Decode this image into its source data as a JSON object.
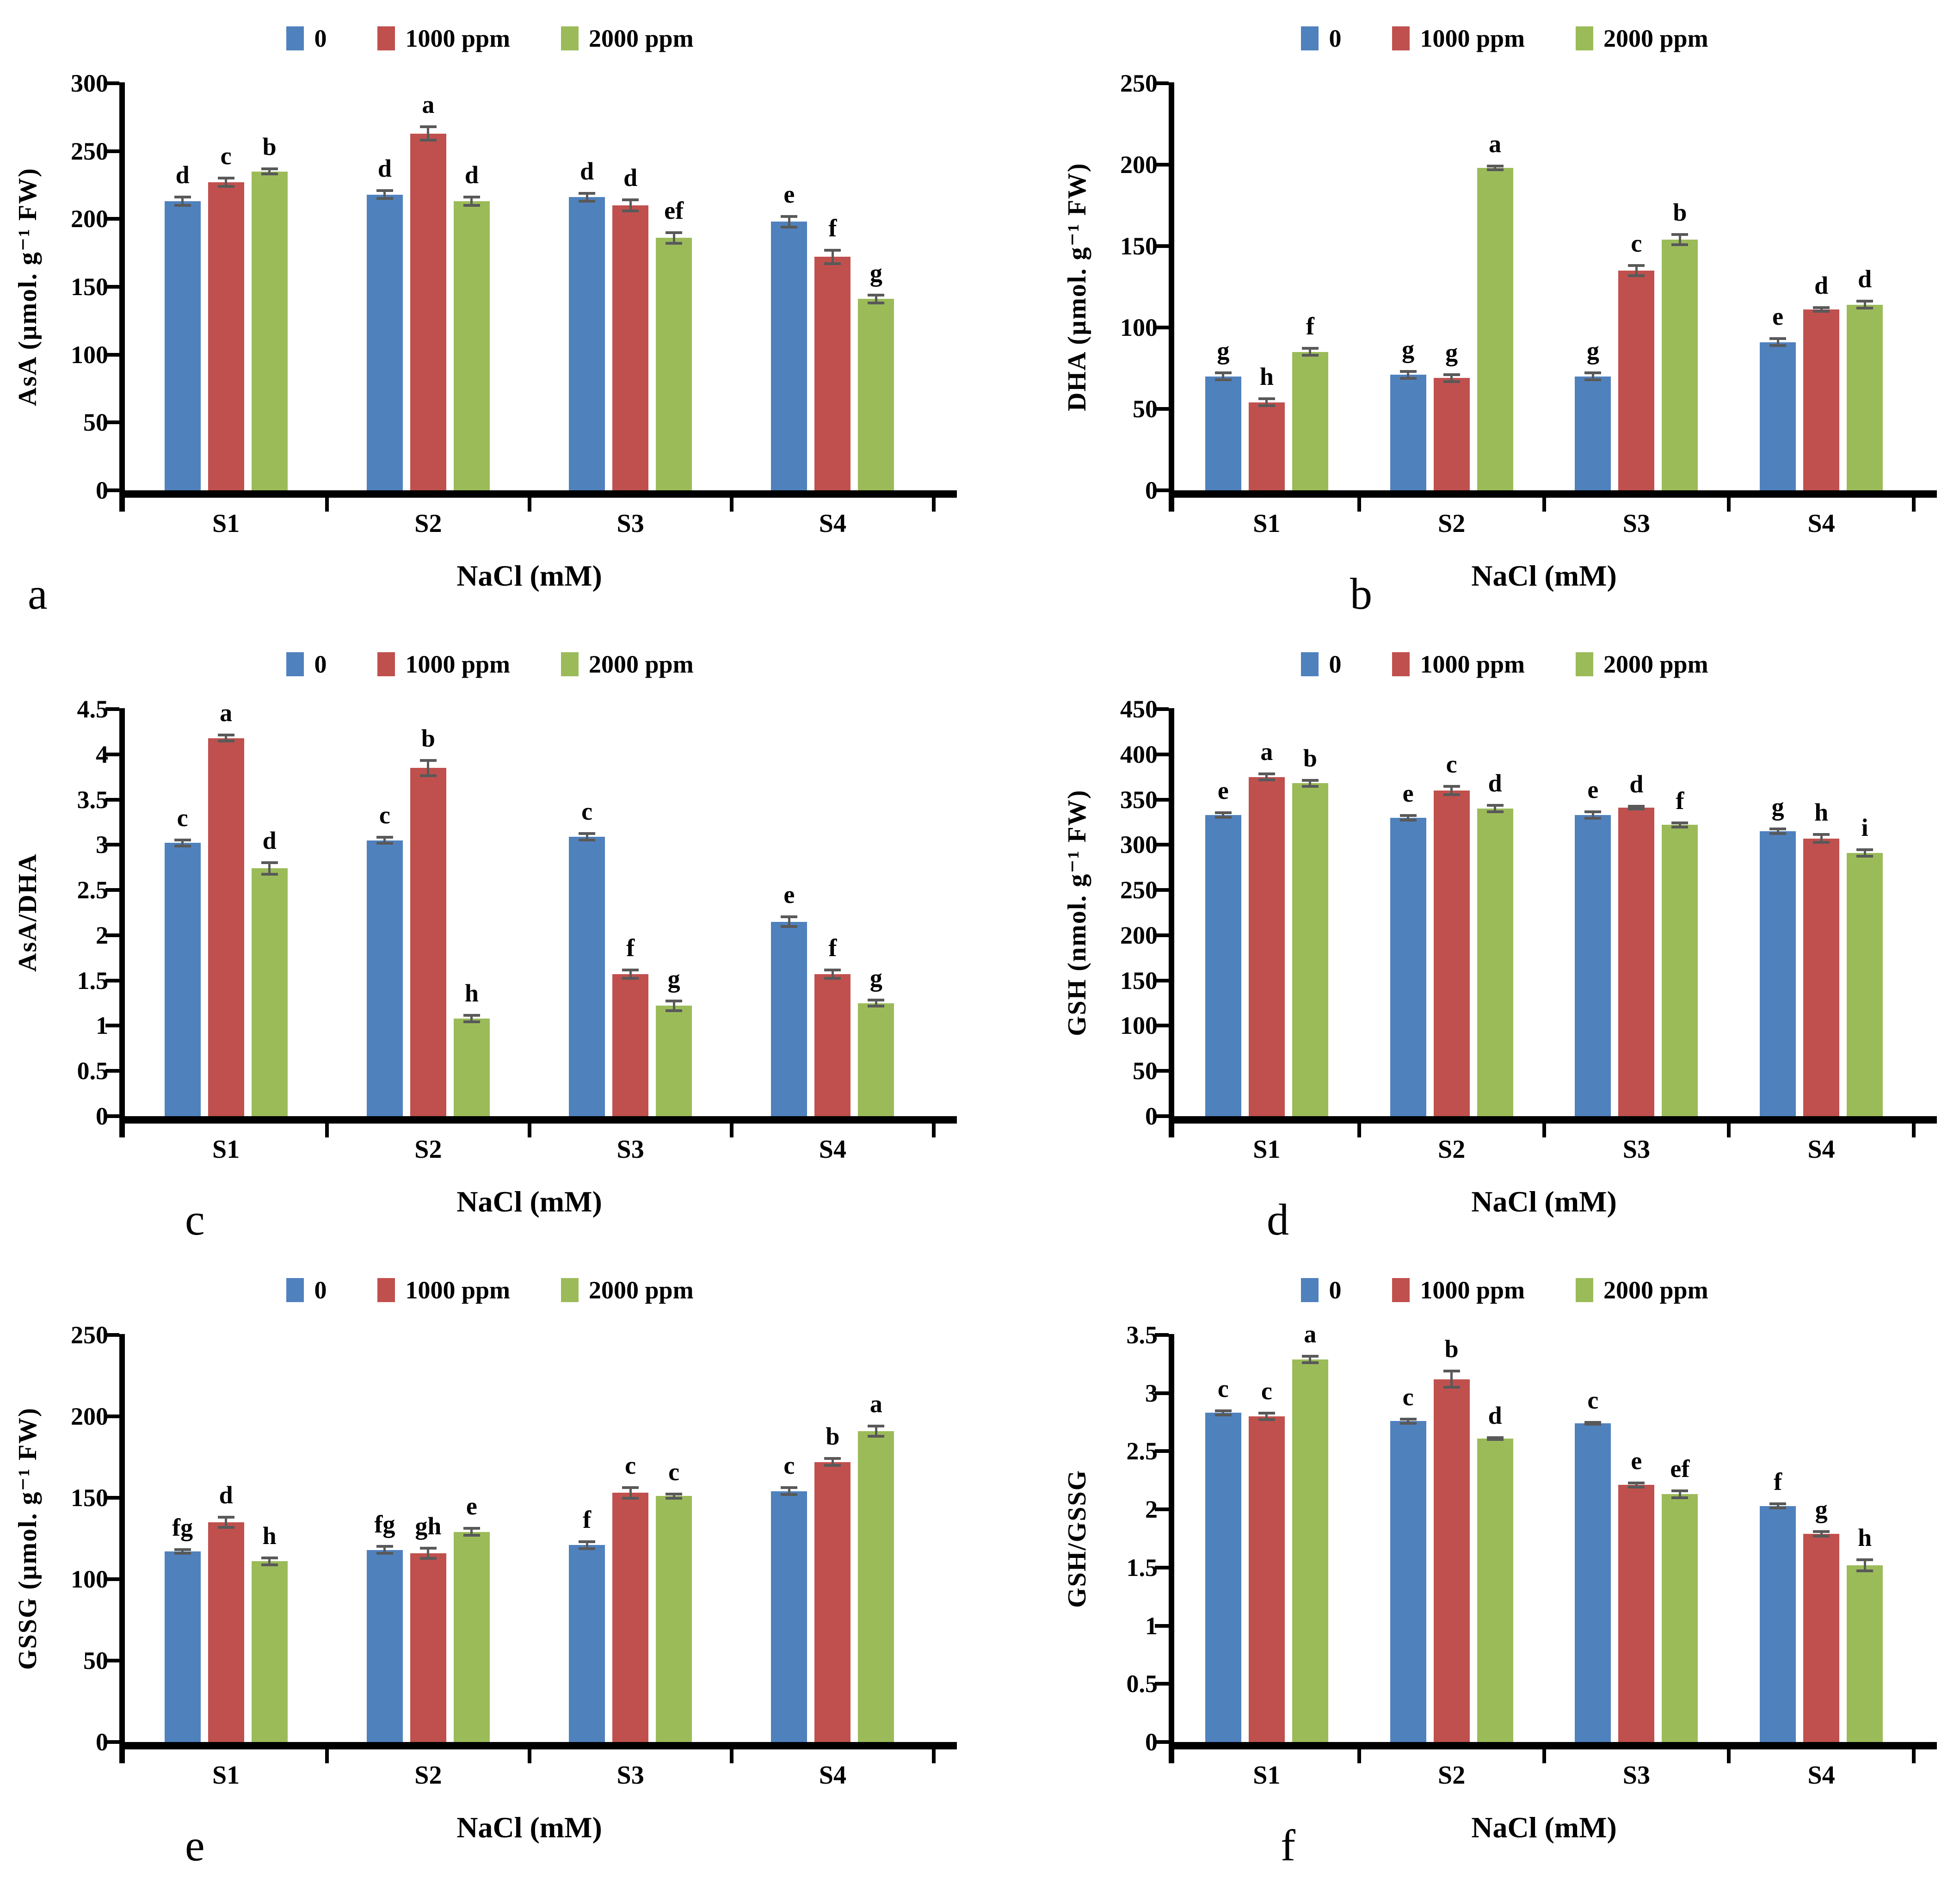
{
  "legend": {
    "items": [
      {
        "label": "0",
        "color": "#4F81BD"
      },
      {
        "label": "1000 ppm",
        "color": "#C0504D"
      },
      {
        "label": "2000 ppm",
        "color": "#9BBB59"
      }
    ]
  },
  "error_bar_color": "#595959",
  "chart_data": [
    {
      "panel": "a",
      "type": "bar",
      "ylabel": "AsA (µmol. g⁻¹ FW)",
      "xlabel": "NaCl (mM)",
      "ylim": [
        0,
        300
      ],
      "ytick_step": 50,
      "grid": false,
      "legend_position": "top",
      "categories": [
        "S1",
        "S2",
        "S3",
        "S4"
      ],
      "series": [
        {
          "name": "0",
          "color": "#4F81BD",
          "values": [
            213,
            218,
            216,
            198
          ],
          "errors": [
            4,
            4,
            4,
            5
          ],
          "letters": [
            "d",
            "d",
            "d",
            "e"
          ]
        },
        {
          "name": "1000 ppm",
          "color": "#C0504D",
          "values": [
            227,
            263,
            210,
            172
          ],
          "errors": [
            4,
            6,
            5,
            6
          ],
          "letters": [
            "c",
            "a",
            "d",
            "f"
          ]
        },
        {
          "name": "2000 ppm",
          "color": "#9BBB59",
          "values": [
            235,
            213,
            186,
            141
          ],
          "errors": [
            3,
            4,
            5,
            4
          ],
          "letters": [
            "b",
            "d",
            "ef",
            "g"
          ]
        }
      ]
    },
    {
      "panel": "b",
      "type": "bar",
      "ylabel": "DHA (µmol. g⁻¹ FW)",
      "xlabel": "NaCl (mM)",
      "ylim": [
        0,
        250
      ],
      "ytick_step": 50,
      "grid": false,
      "legend_position": "top",
      "categories": [
        "S1",
        "S2",
        "S3",
        "S4"
      ],
      "series": [
        {
          "name": "0",
          "color": "#4F81BD",
          "values": [
            70,
            71,
            70,
            91
          ],
          "errors": [
            3,
            3,
            3,
            3
          ],
          "letters": [
            "g",
            "g",
            "g",
            "e"
          ]
        },
        {
          "name": "1000 ppm",
          "color": "#C0504D",
          "values": [
            54,
            69,
            135,
            111
          ],
          "errors": [
            3,
            3,
            4,
            2
          ],
          "letters": [
            "h",
            "g",
            "c",
            "d"
          ]
        },
        {
          "name": "2000 ppm",
          "color": "#9BBB59",
          "values": [
            85,
            198,
            154,
            114
          ],
          "errors": [
            3,
            2,
            4,
            3
          ],
          "letters": [
            "f",
            "a",
            "b",
            "d"
          ]
        }
      ]
    },
    {
      "panel": "c",
      "type": "bar",
      "ylabel": "AsA/DHA",
      "xlabel": "NaCl (mM)",
      "ylim": [
        0,
        4.5
      ],
      "ytick_step": 0.5,
      "grid": false,
      "legend_position": "top",
      "categories": [
        "S1",
        "S2",
        "S3",
        "S4"
      ],
      "series": [
        {
          "name": "0",
          "color": "#4F81BD",
          "values": [
            3.02,
            3.05,
            3.09,
            2.15
          ],
          "errors": [
            0.05,
            0.05,
            0.05,
            0.07
          ],
          "letters": [
            "c",
            "c",
            "c",
            "e"
          ]
        },
        {
          "name": "1000 ppm",
          "color": "#C0504D",
          "values": [
            4.18,
            3.85,
            1.57,
            1.57
          ],
          "errors": [
            0.05,
            0.1,
            0.06,
            0.06
          ],
          "letters": [
            "a",
            "b",
            "f",
            "f"
          ]
        },
        {
          "name": "2000 ppm",
          "color": "#9BBB59",
          "values": [
            2.74,
            1.08,
            1.22,
            1.25
          ],
          "errors": [
            0.08,
            0.05,
            0.07,
            0.05
          ],
          "letters": [
            "d",
            "h",
            "g",
            "g"
          ]
        }
      ]
    },
    {
      "panel": "d",
      "type": "bar",
      "ylabel": "GSH (nmol. g⁻¹ FW)",
      "xlabel": "NaCl (mM)",
      "ylim": [
        0,
        450
      ],
      "ytick_step": 50,
      "grid": false,
      "legend_position": "top",
      "categories": [
        "S1",
        "S2",
        "S3",
        "S4"
      ],
      "series": [
        {
          "name": "0",
          "color": "#4F81BD",
          "values": [
            333,
            330,
            333,
            315
          ],
          "errors": [
            4,
            4,
            5,
            4
          ],
          "letters": [
            "e",
            "e",
            "e",
            "g"
          ]
        },
        {
          "name": "1000 ppm",
          "color": "#C0504D",
          "values": [
            375,
            360,
            341,
            307
          ],
          "errors": [
            5,
            6,
            3,
            6
          ],
          "letters": [
            "a",
            "c",
            "d",
            "h"
          ]
        },
        {
          "name": "2000 ppm",
          "color": "#9BBB59",
          "values": [
            368,
            340,
            322,
            291
          ],
          "errors": [
            5,
            5,
            4,
            5
          ],
          "letters": [
            "b",
            "d",
            "f",
            "i"
          ]
        }
      ]
    },
    {
      "panel": "e",
      "type": "bar",
      "ylabel": "GSSG (µmol. g⁻¹ FW)",
      "xlabel": "NaCl (mM)",
      "ylim": [
        0,
        250
      ],
      "ytick_step": 50,
      "grid": false,
      "legend_position": "top",
      "categories": [
        "S1",
        "S2",
        "S3",
        "S4"
      ],
      "series": [
        {
          "name": "0",
          "color": "#4F81BD",
          "values": [
            117,
            118,
            121,
            154
          ],
          "errors": [
            2,
            3,
            3,
            3
          ],
          "letters": [
            "fg",
            "fg",
            "f",
            "c"
          ]
        },
        {
          "name": "1000 ppm",
          "color": "#C0504D",
          "values": [
            135,
            116,
            153,
            172
          ],
          "errors": [
            4,
            4,
            4,
            3
          ],
          "letters": [
            "d",
            "gh",
            "c",
            "b"
          ]
        },
        {
          "name": "2000 ppm",
          "color": "#9BBB59",
          "values": [
            111,
            129,
            151,
            191
          ],
          "errors": [
            3,
            3,
            2,
            4
          ],
          "letters": [
            "h",
            "e",
            "c",
            "a"
          ]
        }
      ]
    },
    {
      "panel": "f",
      "type": "bar",
      "ylabel": "GSH/GSSG",
      "xlabel": "NaCl (mM)",
      "ylim": [
        0,
        3.5
      ],
      "ytick_step": 0.5,
      "grid": false,
      "legend_position": "top",
      "categories": [
        "S1",
        "S2",
        "S3",
        "S4"
      ],
      "series": [
        {
          "name": "0",
          "color": "#4F81BD",
          "values": [
            2.83,
            2.76,
            2.74,
            2.03
          ],
          "errors": [
            0.03,
            0.03,
            0.02,
            0.03
          ],
          "letters": [
            "c",
            "c",
            "c",
            "f"
          ]
        },
        {
          "name": "1000 ppm",
          "color": "#C0504D",
          "values": [
            2.8,
            3.12,
            2.21,
            1.79
          ],
          "errors": [
            0.04,
            0.08,
            0.03,
            0.03
          ],
          "letters": [
            "c",
            "b",
            "e",
            "g"
          ]
        },
        {
          "name": "2000 ppm",
          "color": "#9BBB59",
          "values": [
            3.29,
            2.61,
            2.13,
            1.52
          ],
          "errors": [
            0.04,
            0.02,
            0.04,
            0.06
          ],
          "letters": [
            "a",
            "d",
            "ef",
            "h"
          ]
        }
      ]
    }
  ]
}
